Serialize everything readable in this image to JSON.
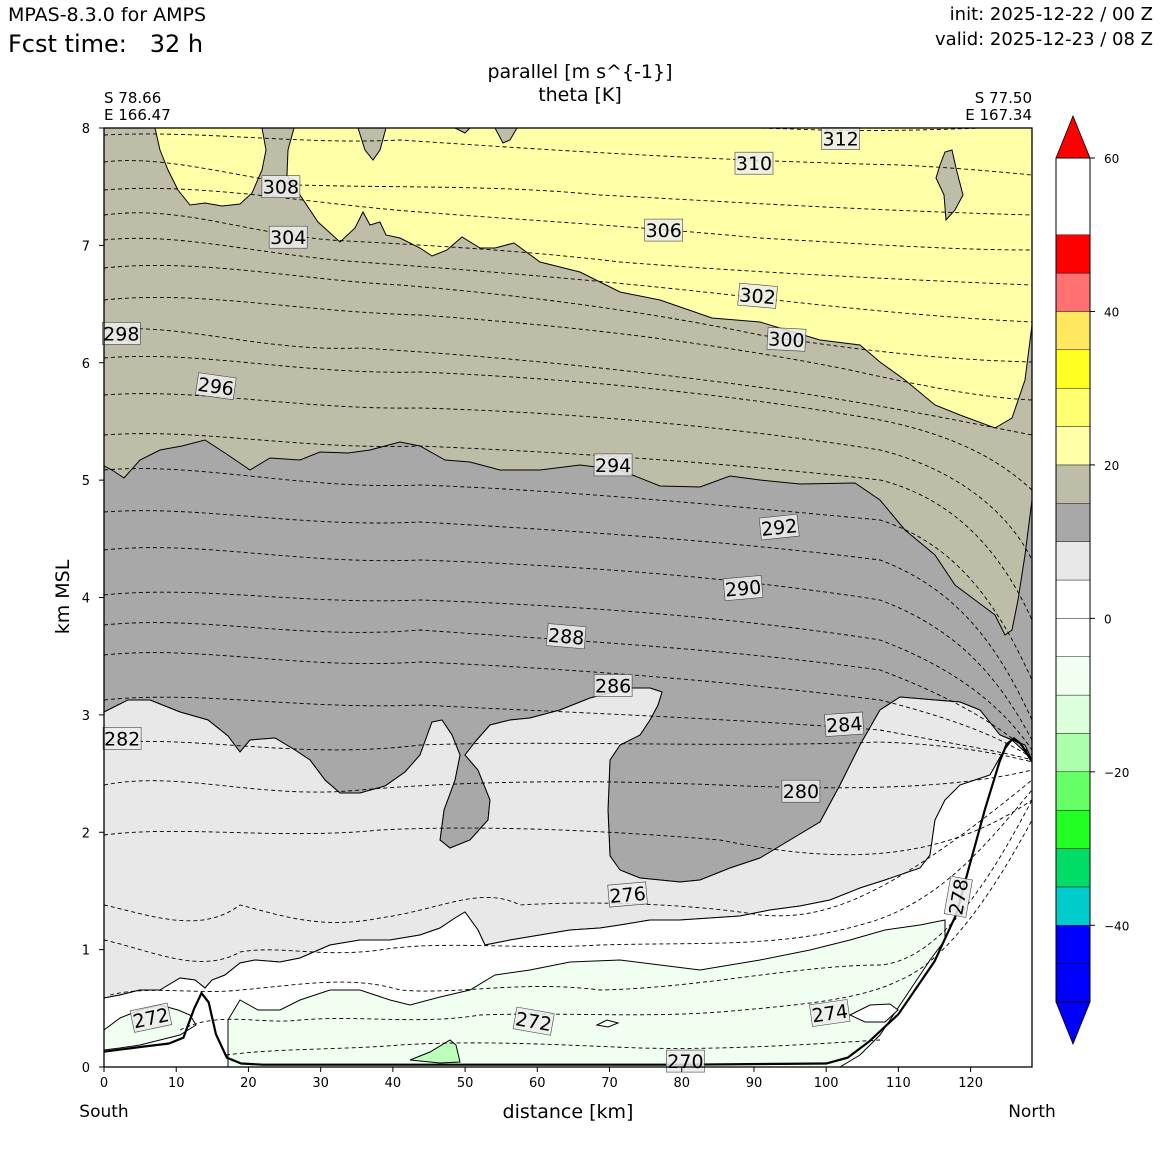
{
  "header": {
    "model": "MPAS-8.3.0 for AMPS",
    "fcst_label": "Fcst time:",
    "fcst_value": "32 h",
    "init": "init: 2025-12-22 / 00 Z",
    "valid": "valid: 2025-12-23 / 08 Z"
  },
  "chart_data": {
    "type": "cross-section",
    "title_lines": [
      "parallel [m s^{-1}]",
      "theta [K]"
    ],
    "xlabel": "distance [km]",
    "ylabel": "km MSL",
    "xlim": [
      0,
      128.5
    ],
    "ylim": [
      0,
      8
    ],
    "x_ticks": [
      0,
      10,
      20,
      30,
      40,
      50,
      60,
      70,
      80,
      90,
      100,
      110,
      120
    ],
    "y_ticks": [
      0,
      1,
      2,
      3,
      4,
      5,
      6,
      7,
      8
    ],
    "left_end": {
      "lat": "S 78.66",
      "lon": "E 166.47",
      "direction": "South"
    },
    "right_end": {
      "lat": "S 77.50",
      "lon": "E 167.34",
      "direction": "North"
    },
    "colorbar": {
      "levels": [
        -50,
        -45,
        -40,
        -35,
        -30,
        -25,
        -20,
        -15,
        -10,
        -5,
        0,
        5,
        10,
        15,
        20,
        25,
        30,
        35,
        40,
        45,
        50,
        55,
        60
      ],
      "colors": [
        "#0000ff",
        "#0000ff",
        "#00cccc",
        "#00dd66",
        "#22ff22",
        "#66ff66",
        "#aaffaa",
        "#dcffdc",
        "#f0fff0",
        "#ffffff",
        "#ffffff",
        "#e8e8e8",
        "#a8a8a8",
        "#bdbda8",
        "#ffffa8",
        "#ffff70",
        "#ffff22",
        "#ffe860",
        "#ff7070",
        "#ff0000"
      ],
      "under_color": "#0000ff",
      "over_color": "#ff0000",
      "tick_values": [
        60,
        40,
        20,
        0,
        -20,
        -40
      ],
      "tick_labels": [
        "60",
        "40",
        "20",
        "0",
        "−20",
        "−40"
      ]
    },
    "speed_regions": [
      {
        "value_range": "20-25",
        "color": "#bdbda8",
        "desc": "above ~5 km south, below ~6.3 km north"
      },
      {
        "value_range": "25-30",
        "color": "#ffffa8",
        "desc": "upper layer above ~7 km south sloping to ~5.5 km north"
      },
      {
        "value_range": "15-20",
        "color": "#a8a8a8",
        "desc": "mid layer ~2.5-5 km"
      },
      {
        "value_range": "10-15",
        "color": "#e8e8e8",
        "desc": "lower layer ~1-3 km"
      },
      {
        "value_range": "0-10",
        "color": "#ffffff",
        "desc": "near surface"
      },
      {
        "value_range": "-10-0",
        "color": "#f0fff0",
        "desc": "surface layer 0-0.9 km"
      }
    ],
    "terrain": {
      "x": [
        0,
        5,
        9,
        11,
        12.5,
        13.5,
        14.5,
        15.5,
        17,
        19,
        22,
        40,
        50,
        60,
        80,
        100,
        103,
        106,
        110,
        115,
        118,
        120,
        122,
        124,
        125,
        126,
        127,
        128.5
      ],
      "y": [
        0.13,
        0.17,
        0.2,
        0.25,
        0.5,
        0.63,
        0.55,
        0.28,
        0.08,
        0.03,
        0.02,
        0.02,
        0.02,
        0.02,
        0.02,
        0.03,
        0.08,
        0.22,
        0.45,
        0.9,
        1.3,
        1.75,
        2.2,
        2.6,
        2.75,
        2.8,
        2.75,
        2.6
      ]
    },
    "theta_isentropes_K": [
      270,
      272,
      274,
      276,
      278,
      280,
      282,
      284,
      286,
      288,
      290,
      292,
      294,
      296,
      298,
      300,
      302,
      304,
      306,
      308,
      310,
      312
    ],
    "contour_labels": [
      {
        "text": "312",
        "x": 102,
        "y": 7.91,
        "rot": 0
      },
      {
        "text": "310",
        "x": 90,
        "y": 7.7,
        "rot": 0
      },
      {
        "text": "308",
        "x": 24.5,
        "y": 7.5,
        "rot": 0
      },
      {
        "text": "306",
        "x": 77.5,
        "y": 7.13,
        "rot": 0
      },
      {
        "text": "304",
        "x": 25.5,
        "y": 7.07,
        "rot": 0
      },
      {
        "text": "302",
        "x": 90.5,
        "y": 6.57,
        "rot": 5
      },
      {
        "text": "300",
        "x": 94.5,
        "y": 6.2,
        "rot": 3
      },
      {
        "text": "298",
        "x": 2.4,
        "y": 6.25,
        "rot": 0
      },
      {
        "text": "296",
        "x": 15.5,
        "y": 5.8,
        "rot": 8
      },
      {
        "text": "294",
        "x": 70.5,
        "y": 5.13,
        "rot": 0
      },
      {
        "text": "292",
        "x": 93.5,
        "y": 4.6,
        "rot": -6
      },
      {
        "text": "290",
        "x": 88.5,
        "y": 4.08,
        "rot": -5
      },
      {
        "text": "288",
        "x": 64,
        "y": 3.67,
        "rot": 5
      },
      {
        "text": "286",
        "x": 70.5,
        "y": 3.25,
        "rot": 0
      },
      {
        "text": "284",
        "x": 102.5,
        "y": 2.92,
        "rot": -4
      },
      {
        "text": "282",
        "x": 2.5,
        "y": 2.8,
        "rot": 0
      },
      {
        "text": "280",
        "x": 96.5,
        "y": 2.35,
        "rot": 0
      },
      {
        "text": "278",
        "x": 118.3,
        "y": 1.45,
        "rot": -80
      },
      {
        "text": "276",
        "x": 72.5,
        "y": 1.47,
        "rot": -5
      },
      {
        "text": "274",
        "x": 100.5,
        "y": 0.46,
        "rot": -8
      },
      {
        "text": "272",
        "x": 6.5,
        "y": 0.42,
        "rot": -12
      },
      {
        "text": "272",
        "x": 59.5,
        "y": 0.39,
        "rot": 10
      },
      {
        "text": "270",
        "x": 80.5,
        "y": 0.05,
        "rot": 0
      }
    ]
  }
}
